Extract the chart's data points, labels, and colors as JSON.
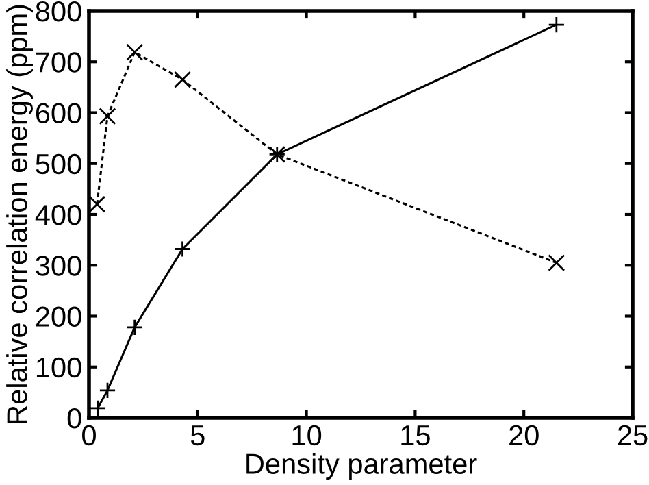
{
  "chart_data": {
    "type": "line",
    "xlabel": "Density parameter",
    "ylabel": "Relative correlation energy (ppm)",
    "xlim": [
      0,
      25
    ],
    "xticks": [
      0,
      5,
      10,
      15,
      20,
      25
    ],
    "ylim": [
      0,
      800
    ],
    "yticks": [
      0,
      100,
      200,
      300,
      400,
      500,
      600,
      700,
      800
    ],
    "grid": false,
    "legend": false,
    "series": [
      {
        "color": "#000000",
        "x": [
          0.4,
          0.85,
          2.1,
          4.3,
          8.65,
          21.5
        ],
        "values": [
          19,
          54,
          178,
          332,
          518,
          773
        ],
        "marker": "plus",
        "line_style": "solid"
      },
      {
        "color": "#000000",
        "x": [
          0.37,
          0.85,
          2.1,
          4.3,
          8.65,
          21.5
        ],
        "values": [
          420,
          593,
          719,
          665,
          518,
          305
        ],
        "marker": "cross",
        "line_style": "dashed"
      }
    ]
  }
}
